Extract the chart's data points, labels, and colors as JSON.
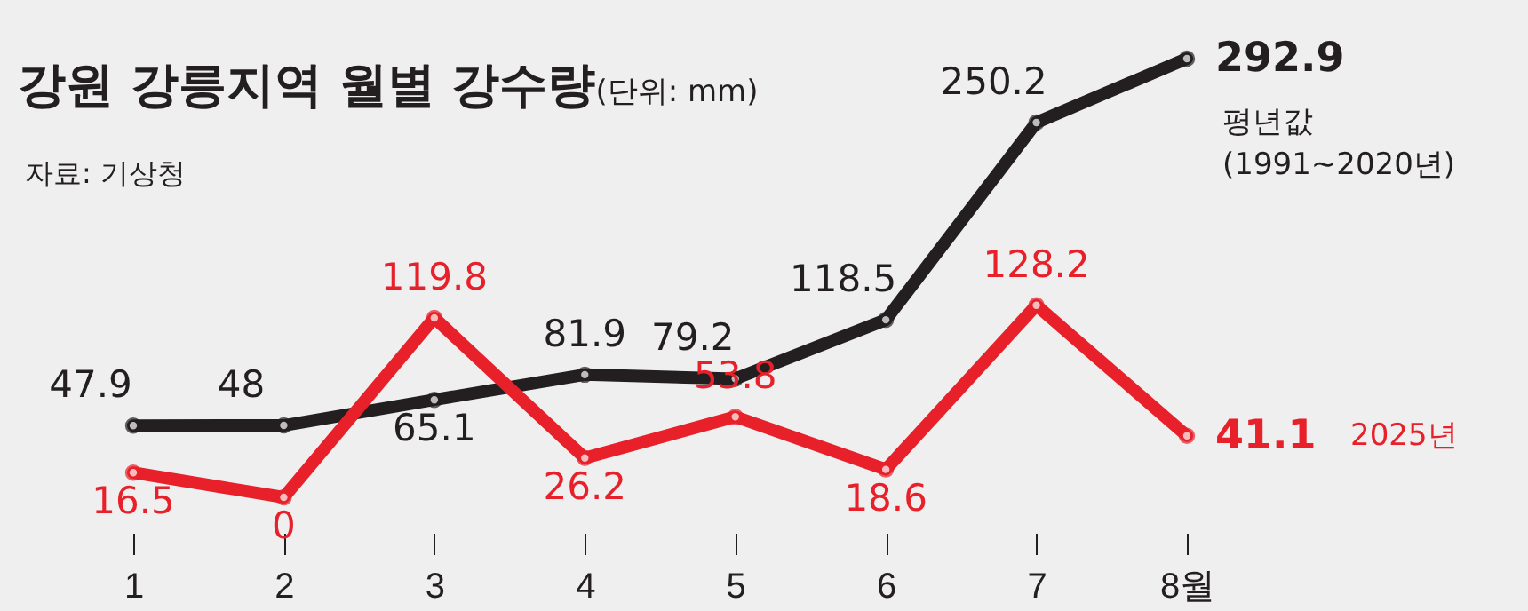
{
  "chart_data": {
    "type": "line",
    "title": "강원 강릉지역 월별 강수량",
    "subtitle": "(단위: mm)",
    "annotations": [
      "자료: 기상청"
    ],
    "categories": [
      "1",
      "2",
      "3",
      "4",
      "5",
      "6",
      "7",
      "8월"
    ],
    "series": [
      {
        "name": "평년값 (1991~2020년)",
        "color": "#231f20",
        "values": [
          47.9,
          48,
          65.1,
          81.9,
          79.2,
          118.5,
          250.2,
          292.9
        ]
      },
      {
        "name": "2025년",
        "color": "#e8202a",
        "values": [
          16.5,
          0,
          119.8,
          26.2,
          53.8,
          18.6,
          128.2,
          41.1
        ]
      }
    ],
    "tick_labels": "x",
    "data_labels": true,
    "legend": false,
    "grid": false,
    "marker": "circle",
    "line_style": "solid"
  }
}
